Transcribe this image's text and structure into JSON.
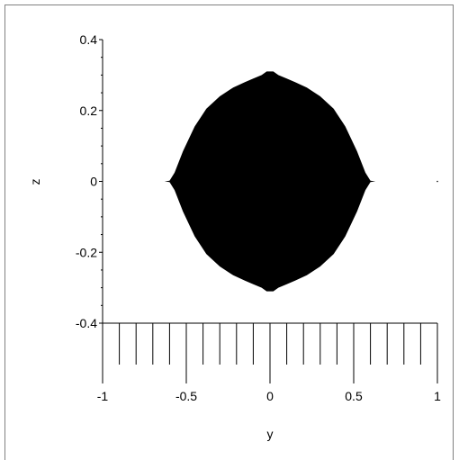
{
  "chart_data": {
    "type": "scatter",
    "title": "",
    "xlabel": "y",
    "ylabel": "z",
    "xlim": [
      -1,
      1
    ],
    "ylim": [
      -0.4,
      0.4
    ],
    "xticks": [
      -1,
      -0.5,
      0,
      0.5,
      1
    ],
    "xtick_labels": [
      "-1",
      "-0.5",
      "0",
      "0.5",
      "1"
    ],
    "yticks": [
      -0.4,
      -0.2,
      0,
      0.2,
      0.4
    ],
    "ytick_labels": [
      "-0.4",
      "-0.2",
      "0",
      "0.2",
      "0.4"
    ],
    "x_minor_step": 0.1,
    "y_minor_step": 0.05,
    "grid": false,
    "legend": "none",
    "color": "#000000",
    "series": [
      {
        "outline": {
          "y": [
            -0.63,
            -0.6,
            -0.57,
            -0.52,
            -0.45,
            -0.38,
            -0.3,
            -0.22,
            -0.15,
            -0.1,
            -0.05,
            -0.02,
            0,
            0.02,
            0.05,
            0.1,
            0.15,
            0.22,
            0.3,
            0.38,
            0.45,
            0.52,
            0.57,
            0.6,
            0.63
          ],
          "z_upper": [
            0,
            0.002,
            0.025,
            0.085,
            0.155,
            0.205,
            0.24,
            0.265,
            0.28,
            0.29,
            0.3,
            0.31,
            0.31,
            0.31,
            0.3,
            0.29,
            0.28,
            0.265,
            0.24,
            0.205,
            0.155,
            0.085,
            0.025,
            0.002,
            0
          ]
        }
      }
    ],
    "isolated_point": [
      1,
      0
    ]
  }
}
